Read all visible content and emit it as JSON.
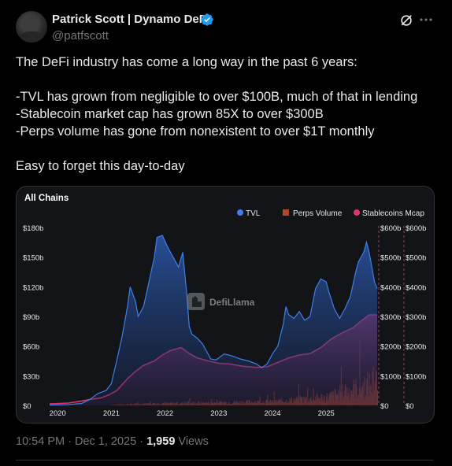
{
  "author": {
    "display_name": "Patrick Scott | Dynamo DeFi",
    "handle": "@patfscott"
  },
  "tweet": {
    "lines": [
      "The DeFi industry has come a long way in the past 6 years:",
      "",
      "-TVL has grown from negligible to over $100B, much of that in lending",
      "-Stablecoin market cap has grown 85X to over $300B",
      "-Perps volume has gone from nonexistent to over $1T monthly",
      "",
      "Easy to forget this day-to-day"
    ]
  },
  "chart_data": {
    "type": "area",
    "title": "All Chains",
    "watermark": "DefiLlama",
    "legend": [
      "TVL",
      "Perps Volume",
      "Stablecoins Mcap"
    ],
    "legend_position": "top-right",
    "colors": {
      "tvl": "#3f7ee8",
      "perps": "#b5482a",
      "stablecoins": "#e0336e"
    },
    "x_ticks": [
      "2020",
      "2021",
      "2022",
      "2023",
      "2024",
      "2025"
    ],
    "y_left_ticks": [
      "$0",
      "$30b",
      "$60b",
      "$90b",
      "$120b",
      "$150b",
      "$180b"
    ],
    "y_right1_ticks": [
      "$0",
      "$100b",
      "$200b",
      "$300b",
      "$400b",
      "$500b",
      "$600b"
    ],
    "y_right2_ticks": [
      "$0",
      "$100b",
      "$200b",
      "$300b",
      "$400b",
      "$500b",
      "$600b"
    ],
    "y_left_range": [
      0,
      180
    ],
    "y_right_range": [
      0,
      600
    ],
    "x_range": [
      2019.85,
      2025.95
    ],
    "series": [
      {
        "name": "TVL",
        "axis": "left",
        "points": [
          [
            2019.85,
            0.3
          ],
          [
            2020.2,
            0.8
          ],
          [
            2020.45,
            2
          ],
          [
            2020.6,
            6
          ],
          [
            2020.75,
            12
          ],
          [
            2020.9,
            15
          ],
          [
            2021.0,
            22
          ],
          [
            2021.1,
            45
          ],
          [
            2021.2,
            70
          ],
          [
            2021.3,
            100
          ],
          [
            2021.35,
            120
          ],
          [
            2021.45,
            105
          ],
          [
            2021.5,
            90
          ],
          [
            2021.6,
            100
          ],
          [
            2021.7,
            125
          ],
          [
            2021.8,
            150
          ],
          [
            2021.85,
            170
          ],
          [
            2021.95,
            172
          ],
          [
            2022.05,
            160
          ],
          [
            2022.15,
            150
          ],
          [
            2022.25,
            140
          ],
          [
            2022.33,
            155
          ],
          [
            2022.4,
            115
          ],
          [
            2022.45,
            80
          ],
          [
            2022.5,
            72
          ],
          [
            2022.6,
            68
          ],
          [
            2022.7,
            62
          ],
          [
            2022.85,
            47
          ],
          [
            2022.95,
            46
          ],
          [
            2023.1,
            52
          ],
          [
            2023.25,
            50
          ],
          [
            2023.4,
            47
          ],
          [
            2023.55,
            45
          ],
          [
            2023.7,
            42
          ],
          [
            2023.8,
            38
          ],
          [
            2023.9,
            42
          ],
          [
            2024.0,
            52
          ],
          [
            2024.1,
            60
          ],
          [
            2024.2,
            82
          ],
          [
            2024.25,
            100
          ],
          [
            2024.3,
            92
          ],
          [
            2024.4,
            88
          ],
          [
            2024.5,
            95
          ],
          [
            2024.6,
            86
          ],
          [
            2024.7,
            90
          ],
          [
            2024.8,
            118
          ],
          [
            2024.9,
            128
          ],
          [
            2025.0,
            125
          ],
          [
            2025.05,
            115
          ],
          [
            2025.15,
            98
          ],
          [
            2025.25,
            88
          ],
          [
            2025.35,
            98
          ],
          [
            2025.45,
            110
          ],
          [
            2025.55,
            135
          ],
          [
            2025.6,
            145
          ],
          [
            2025.7,
            155
          ],
          [
            2025.75,
            165
          ],
          [
            2025.8,
            155
          ],
          [
            2025.85,
            140
          ],
          [
            2025.9,
            125
          ],
          [
            2025.95,
            118
          ]
        ]
      },
      {
        "name": "Stablecoins Mcap",
        "axis": "right",
        "points": [
          [
            2019.85,
            5
          ],
          [
            2020.2,
            8
          ],
          [
            2020.45,
            15
          ],
          [
            2020.6,
            20
          ],
          [
            2020.8,
            25
          ],
          [
            2020.95,
            35
          ],
          [
            2021.1,
            50
          ],
          [
            2021.3,
            90
          ],
          [
            2021.45,
            115
          ],
          [
            2021.6,
            135
          ],
          [
            2021.8,
            150
          ],
          [
            2021.95,
            170
          ],
          [
            2022.1,
            185
          ],
          [
            2022.3,
            195
          ],
          [
            2022.45,
            175
          ],
          [
            2022.6,
            160
          ],
          [
            2022.8,
            150
          ],
          [
            2023.0,
            142
          ],
          [
            2023.2,
            140
          ],
          [
            2023.45,
            132
          ],
          [
            2023.7,
            128
          ],
          [
            2023.9,
            130
          ],
          [
            2024.1,
            145
          ],
          [
            2024.3,
            160
          ],
          [
            2024.5,
            170
          ],
          [
            2024.7,
            175
          ],
          [
            2024.9,
            195
          ],
          [
            2025.1,
            225
          ],
          [
            2025.3,
            245
          ],
          [
            2025.5,
            262
          ],
          [
            2025.65,
            285
          ],
          [
            2025.8,
            305
          ],
          [
            2025.95,
            305
          ]
        ]
      }
    ]
  },
  "meta": {
    "time": "10:54 PM",
    "separator": "·",
    "date": "Dec 1, 2025",
    "views_count": "1,959",
    "views_label": "Views"
  }
}
